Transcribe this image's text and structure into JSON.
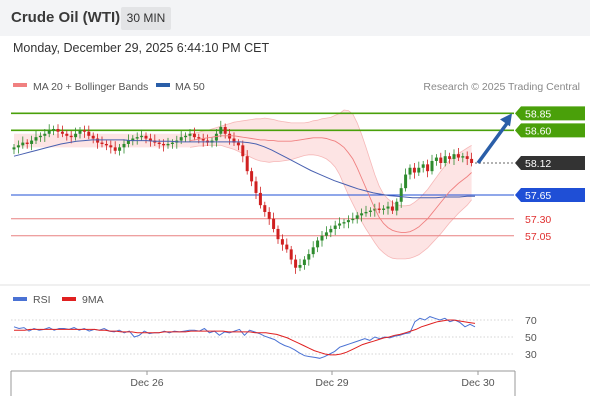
{
  "header": {
    "instrument": "Crude Oil (WTI)",
    "timeframe": "30 MIN",
    "datetime": "Monday, December 29, 2025 6:44:10 PM CET"
  },
  "legend": {
    "bollinger": "MA 20 + Bollinger Bands",
    "ma50": "MA 50",
    "credit": "Research © 2025 Trading Central",
    "rsi": "RSI",
    "rsi_ma": "9MA"
  },
  "colors": {
    "bullish": "#2e8b2e",
    "bearish": "#d02020",
    "bollinger": "#f08080",
    "band_fill": "#fde4e4",
    "ma50": "#4860b0",
    "resistance": "#4aa00a",
    "current": "#333333",
    "pivot": "#1f4fd6",
    "support": "#e88080",
    "arrow": "#2a5ea8",
    "rsi": "#4a72d4",
    "rsi_ma": "#e02020"
  },
  "chart_data": [
    {
      "type": "candlestick",
      "title": "",
      "price_range": [
        56.2,
        59.1
      ],
      "levels": [
        {
          "value": 58.85,
          "label": "58.85",
          "kind": "resistance"
        },
        {
          "value": 58.6,
          "label": "58.60",
          "kind": "resistance"
        },
        {
          "value": 58.12,
          "label": "58.12",
          "kind": "current"
        },
        {
          "value": 57.65,
          "label": "57.65",
          "kind": "pivot"
        },
        {
          "value": 57.3,
          "label": "57.30",
          "kind": "support"
        },
        {
          "value": 57.05,
          "label": "57.05",
          "kind": "support"
        }
      ],
      "x_ticks": [
        "Dec 26",
        "Dec 29",
        "Dec 30"
      ],
      "arrow": {
        "from": 58.12,
        "to": 58.85
      },
      "closes": [
        58.35,
        58.38,
        58.42,
        58.4,
        58.45,
        58.5,
        58.52,
        58.55,
        58.6,
        58.62,
        58.58,
        58.55,
        58.52,
        58.5,
        58.55,
        58.6,
        58.58,
        58.52,
        58.48,
        58.42,
        58.4,
        58.38,
        58.35,
        58.3,
        58.35,
        58.4,
        58.45,
        58.48,
        58.5,
        58.52,
        58.48,
        58.45,
        58.42,
        58.4,
        58.38,
        58.4,
        58.42,
        58.45,
        58.5,
        58.52,
        58.55,
        58.5,
        58.48,
        58.45,
        58.42,
        58.45,
        58.55,
        58.65,
        58.55,
        58.48,
        58.42,
        58.38,
        58.22,
        58.0,
        57.85,
        57.68,
        57.5,
        57.4,
        57.3,
        57.15,
        57.0,
        56.92,
        56.85,
        56.7,
        56.58,
        56.62,
        56.7,
        56.78,
        56.88,
        56.98,
        57.05,
        57.1,
        57.15,
        57.2,
        57.23,
        57.25,
        57.28,
        57.3,
        57.35,
        57.38,
        57.4,
        57.42,
        57.45,
        57.43,
        57.45,
        57.48,
        57.42,
        57.55,
        57.75,
        57.95,
        58.05,
        57.98,
        58.05,
        58.1,
        58.0,
        58.15,
        58.2,
        58.12,
        58.22,
        58.18,
        58.25,
        58.2,
        58.22,
        58.18,
        58.12
      ],
      "ma20": [
        58.45,
        58.46,
        58.47,
        58.48,
        58.49,
        58.5,
        58.51,
        58.52,
        58.52,
        58.52,
        58.52,
        58.51,
        58.5,
        58.49,
        58.48,
        58.47,
        58.46,
        58.46,
        58.45,
        58.45,
        58.44,
        58.44,
        58.44,
        58.44,
        58.45,
        58.46,
        58.47,
        58.48,
        58.49,
        58.49,
        58.49,
        58.48,
        58.46,
        58.44,
        58.4,
        58.35,
        58.27,
        58.18,
        58.05,
        57.9,
        57.75,
        57.6,
        57.45,
        57.32,
        57.23,
        57.17,
        57.13,
        57.11,
        57.1,
        57.1,
        57.11,
        57.14,
        57.18,
        57.24,
        57.3,
        57.38,
        57.46,
        57.54,
        57.62,
        57.7,
        57.76,
        57.82,
        57.87,
        57.92,
        57.98
      ],
      "ma20_bar_start": 40,
      "bollinger_half_width": [
        0.1,
        0.1,
        0.1,
        0.11,
        0.11,
        0.12,
        0.13,
        0.14,
        0.16,
        0.18,
        0.2,
        0.22,
        0.24,
        0.26,
        0.28,
        0.3,
        0.31,
        0.32,
        0.32,
        0.31,
        0.3,
        0.29,
        0.28,
        0.27,
        0.26,
        0.25,
        0.24,
        0.24,
        0.25,
        0.26,
        0.28,
        0.3,
        0.33,
        0.38,
        0.45,
        0.55,
        0.62,
        0.66,
        0.66,
        0.64,
        0.6,
        0.55,
        0.5,
        0.46,
        0.43,
        0.42,
        0.41,
        0.4,
        0.39,
        0.39,
        0.39,
        0.4,
        0.41,
        0.42,
        0.43,
        0.44,
        0.45,
        0.46,
        0.46,
        0.46,
        0.45,
        0.44,
        0.43,
        0.42,
        0.4
      ],
      "ma50": [
        58.22,
        58.25,
        58.28,
        58.31,
        58.34,
        58.37,
        58.4,
        58.42,
        58.44,
        58.45,
        58.46,
        58.46,
        58.46,
        58.46,
        58.46,
        58.45,
        58.45,
        58.45,
        58.44,
        58.44,
        58.44,
        58.43,
        58.43,
        58.43,
        58.43,
        58.43,
        58.43,
        58.43,
        58.43,
        58.43,
        58.42,
        58.4,
        58.36,
        58.31,
        58.25,
        58.19,
        58.13,
        58.07,
        58.01,
        57.96,
        57.91,
        57.86,
        57.82,
        57.78,
        57.74,
        57.71,
        57.68,
        57.66,
        57.64,
        57.63,
        57.62,
        57.61,
        57.61,
        57.61,
        57.61,
        57.62,
        57.62,
        57.62,
        57.63,
        57.63
      ]
    },
    {
      "type": "line",
      "title": "",
      "ylim": [
        20,
        80
      ],
      "y_ticks": [
        70,
        50,
        30
      ],
      "series": [
        {
          "name": "RSI",
          "values": [
            62,
            60,
            61,
            57,
            60,
            58,
            59,
            61,
            58,
            60,
            60,
            59,
            61,
            58,
            60,
            57,
            59,
            58,
            60,
            57,
            56,
            58,
            55,
            57,
            50,
            52,
            57,
            54,
            55,
            55,
            57,
            55,
            57,
            56,
            57,
            58,
            58,
            57,
            60,
            55,
            57,
            52,
            56,
            55,
            57,
            59,
            52,
            58,
            56,
            54,
            51,
            49,
            47,
            43,
            40,
            38,
            35,
            31,
            28,
            27,
            26,
            25,
            27,
            30,
            33,
            38,
            40,
            42,
            44,
            46,
            48,
            46,
            50,
            48,
            50,
            49,
            51,
            52,
            54,
            55,
            68,
            72,
            70,
            74,
            72,
            70,
            72,
            68,
            70,
            67,
            62,
            65,
            62
          ]
        },
        {
          "name": "9MA",
          "values": [
            58,
            58,
            58,
            59,
            59,
            59,
            59,
            59,
            59,
            59,
            59,
            59,
            59,
            59,
            59,
            59,
            58,
            58,
            57,
            57,
            56,
            56,
            56,
            55,
            55,
            55,
            55,
            55,
            56,
            56,
            56,
            56,
            56,
            57,
            57,
            57,
            57,
            57,
            57,
            57,
            56,
            56,
            56,
            56,
            56,
            55,
            55,
            55,
            54,
            53,
            51,
            49,
            46,
            43,
            40,
            37,
            34,
            32,
            30,
            29,
            29,
            30,
            32,
            35,
            38,
            41,
            43,
            45,
            47,
            49,
            50,
            52,
            53,
            55,
            57,
            59,
            62,
            64,
            66,
            68,
            69,
            70,
            70,
            69,
            68,
            67,
            66
          ]
        }
      ]
    }
  ]
}
